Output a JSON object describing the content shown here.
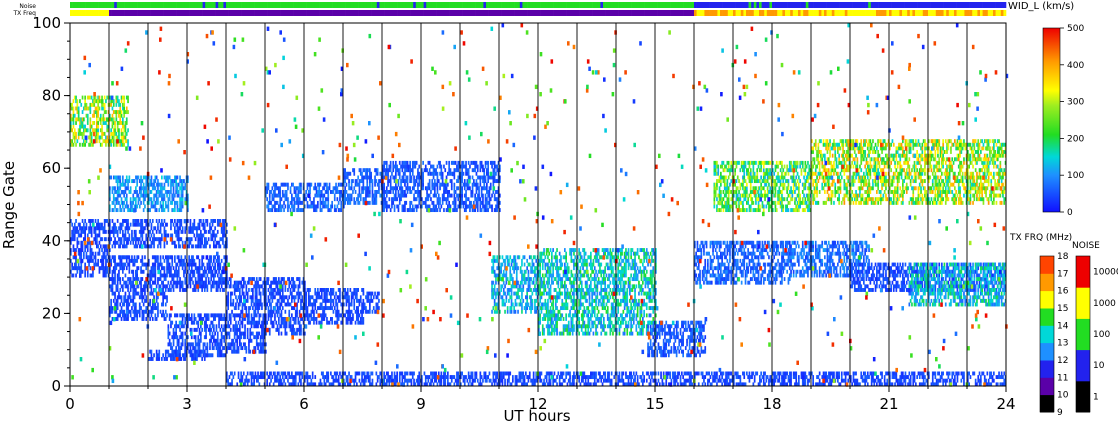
{
  "chart_data": {
    "type": "heatmap",
    "xlabel": "UT hours",
    "ylabel": "Range Gate",
    "xlim": [
      0,
      24
    ],
    "ylim": [
      0,
      100
    ],
    "x_ticks": [
      "0",
      "3",
      "6",
      "9",
      "12",
      "15",
      "18",
      "21",
      "24"
    ],
    "y_ticks": [
      "0",
      "20",
      "40",
      "60",
      "80",
      "100"
    ],
    "hour_lines": [
      1,
      2,
      3,
      4,
      5,
      6,
      7,
      8,
      9,
      10,
      11,
      12,
      13,
      14,
      15,
      16,
      17,
      18,
      19,
      20,
      21,
      22,
      23
    ],
    "param_colorbar": {
      "title": "WID_L (km/s)",
      "min": 0,
      "max": 500,
      "ticks": [
        "0",
        "100",
        "200",
        "300",
        "400",
        "500"
      ]
    },
    "txfreq_colorbar": {
      "title": "TX FRQ (MHz)",
      "ticks": [
        "9",
        "10",
        "11",
        "12",
        "13",
        "14",
        "15",
        "16",
        "17",
        "18"
      ]
    },
    "noise_colorbar": {
      "title": "NOISE",
      "ticks": [
        "1",
        "10",
        "100",
        "1000",
        "10000"
      ]
    },
    "top_strips": {
      "noise_label": "Noise",
      "txfreq_label": "TX Freq"
    },
    "echo_bands": [
      {
        "x0": 0.0,
        "x1": 1.0,
        "g0": 30,
        "g1": 46,
        "level": 40
      },
      {
        "x0": 1.0,
        "x1": 4.0,
        "g0": 38,
        "g1": 46,
        "level": 40
      },
      {
        "x0": 1.0,
        "x1": 2.5,
        "g0": 18,
        "g1": 36,
        "level": 40
      },
      {
        "x0": 2.5,
        "x1": 4.0,
        "g0": 26,
        "g1": 36,
        "level": 40
      },
      {
        "x0": 1.0,
        "x1": 3.0,
        "g0": 48,
        "g1": 58,
        "level": 90
      },
      {
        "x0": 2.0,
        "x1": 3.5,
        "g0": 7,
        "g1": 10,
        "level": 40
      },
      {
        "x0": 2.5,
        "x1": 4.0,
        "g0": 8,
        "g1": 20,
        "level": 40
      },
      {
        "x0": 4.0,
        "x1": 5.0,
        "g0": 9,
        "g1": 30,
        "level": 40
      },
      {
        "x0": 5.0,
        "x1": 6.0,
        "g0": 14,
        "g1": 30,
        "level": 40
      },
      {
        "x0": 6.0,
        "x1": 7.5,
        "g0": 17,
        "g1": 27,
        "level": 40
      },
      {
        "x0": 7.5,
        "x1": 7.9,
        "g0": 20,
        "g1": 26,
        "level": 40
      },
      {
        "x0": 5.0,
        "x1": 7.0,
        "g0": 48,
        "g1": 56,
        "level": 60
      },
      {
        "x0": 7.0,
        "x1": 8.0,
        "g0": 50,
        "g1": 60,
        "level": 60
      },
      {
        "x0": 8.0,
        "x1": 11.0,
        "g0": 48,
        "g1": 62,
        "level": 50
      },
      {
        "x0": 10.8,
        "x1": 12.0,
        "g0": 20,
        "g1": 36,
        "level": 110
      },
      {
        "x0": 12.0,
        "x1": 15.0,
        "g0": 14,
        "g1": 38,
        "level": 130
      },
      {
        "x0": 14.8,
        "x1": 16.3,
        "g0": 8,
        "g1": 18,
        "level": 50
      },
      {
        "x0": 16.0,
        "x1": 18.5,
        "g0": 28,
        "g1": 40,
        "level": 60
      },
      {
        "x0": 16.5,
        "x1": 19.0,
        "g0": 48,
        "g1": 62,
        "level": 200
      },
      {
        "x0": 18.5,
        "x1": 20.5,
        "g0": 30,
        "g1": 40,
        "level": 70
      },
      {
        "x0": 19.0,
        "x1": 24.0,
        "g0": 50,
        "g1": 68,
        "level": 250
      },
      {
        "x0": 20.0,
        "x1": 24.0,
        "g0": 26,
        "g1": 34,
        "level": 40
      },
      {
        "x0": 21.5,
        "x1": 24.0,
        "g0": 22,
        "g1": 34,
        "level": 120
      },
      {
        "x0": 4.0,
        "x1": 24.0,
        "g0": 0,
        "g1": 4,
        "level": 40
      },
      {
        "x0": 0.0,
        "x1": 1.5,
        "g0": 66,
        "g1": 80,
        "level": 240
      }
    ]
  }
}
